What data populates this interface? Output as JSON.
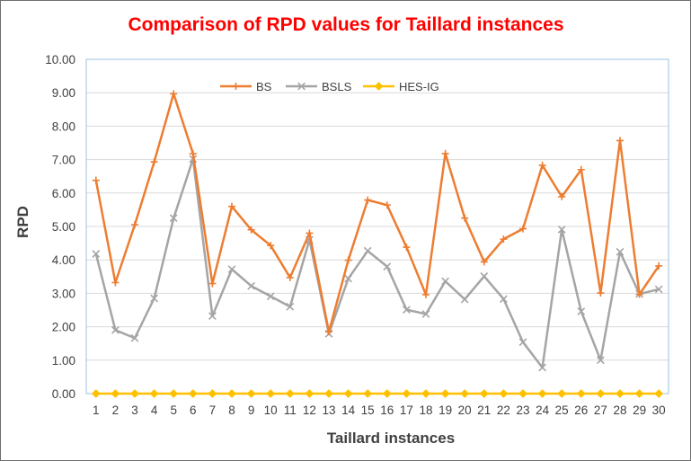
{
  "chart_data": {
    "type": "line",
    "title": "Comparison of RPD values for Taillard instances",
    "xlabel": "Taillard instances",
    "ylabel": "RPD",
    "ylim": [
      0,
      10
    ],
    "ytick_step": 1,
    "ytick_decimals": 2,
    "legend_position": "top-center",
    "categories": [
      "1",
      "2",
      "3",
      "4",
      "5",
      "6",
      "7",
      "8",
      "9",
      "10",
      "11",
      "12",
      "13",
      "14",
      "15",
      "16",
      "17",
      "18",
      "19",
      "20",
      "21",
      "22",
      "23",
      "24",
      "25",
      "26",
      "27",
      "28",
      "29",
      "30"
    ],
    "series": [
      {
        "name": "BS",
        "color": "#ed7d31",
        "marker": "plus",
        "values": [
          6.38,
          3.32,
          5.05,
          6.93,
          8.97,
          7.18,
          3.29,
          5.6,
          4.9,
          4.43,
          3.47,
          4.8,
          1.85,
          3.99,
          5.79,
          5.64,
          4.38,
          2.96,
          7.18,
          5.25,
          3.94,
          4.62,
          4.93,
          6.83,
          5.89,
          6.7,
          3.01,
          7.57,
          2.97,
          3.82
        ]
      },
      {
        "name": "BSLS",
        "color": "#a5a5a5",
        "marker": "x",
        "values": [
          4.18,
          1.9,
          1.66,
          2.85,
          5.25,
          7.02,
          2.32,
          3.72,
          3.22,
          2.91,
          2.6,
          4.6,
          1.79,
          3.44,
          4.27,
          3.8,
          2.51,
          2.38,
          3.36,
          2.82,
          3.51,
          2.83,
          1.54,
          0.78,
          4.91,
          2.46,
          1.0,
          4.24,
          2.98,
          3.12
        ]
      },
      {
        "name": "HES-IG",
        "color": "#ffc000",
        "marker": "diamond",
        "values": [
          0,
          0,
          0,
          0,
          0,
          0,
          0,
          0,
          0,
          0,
          0,
          0,
          0,
          0,
          0,
          0,
          0,
          0,
          0,
          0,
          0,
          0,
          0,
          0,
          0,
          0,
          0,
          0,
          0,
          0
        ]
      }
    ]
  },
  "colors": {
    "title": "#ff0000",
    "plot_border": "#9dc3e6",
    "gridline": "#d9d9d9",
    "axis": "#bfbfbf"
  }
}
